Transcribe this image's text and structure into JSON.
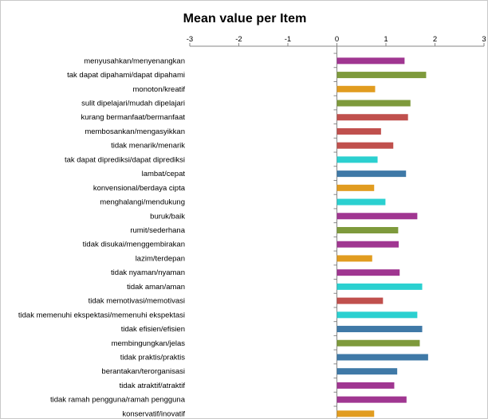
{
  "chart_data": {
    "type": "bar",
    "orientation": "horizontal",
    "title": "Mean value per Item",
    "xlim": [
      -3,
      3
    ],
    "x_ticks": [
      "-3",
      "-2",
      "-1",
      "0",
      "1",
      "2",
      "3"
    ],
    "grid": false,
    "legend": "none",
    "categories": [
      "menyusahkan/menyenangkan",
      "tak dapat dipahami/dapat dipahami",
      "monoton/kreatif",
      "sulit dipelajari/mudah dipelajari",
      "kurang bermanfaat/bermanfaat",
      "membosankan/mengasyikkan",
      "tidak menarik/menarik",
      "tak dapat diprediksi/dapat diprediksi",
      "lambat/cepat",
      "konvensional/berdaya cipta",
      "menghalangi/mendukung",
      "buruk/baik",
      "rumit/sederhana",
      "tidak disukai/menggembirakan",
      "lazim/terdepan",
      "tidak nyaman/nyaman",
      "tidak aman/aman",
      "tidak memotivasi/memotivasi",
      "tidak memenuhi ekspektasi/memenuhi ekspektasi",
      "tidak efisien/efisien",
      "membingungkan/jelas",
      "tidak praktis/praktis",
      "berantakan/terorganisasi",
      "tidak atraktif/atraktif",
      "tidak ramah pengguna/ramah pengguna",
      "konservatif/inovatif"
    ],
    "values": [
      1.38,
      1.82,
      0.78,
      1.5,
      1.45,
      0.9,
      1.15,
      0.83,
      1.41,
      0.76,
      0.99,
      1.64,
      1.25,
      1.26,
      0.72,
      1.28,
      1.74,
      0.94,
      1.64,
      1.74,
      1.69,
      1.86,
      1.23,
      1.17,
      1.42,
      0.76
    ],
    "bar_colors": [
      "#a03691",
      "#7e9a3c",
      "#e19c20",
      "#7e9a3c",
      "#c0504d",
      "#c0504d",
      "#c0504d",
      "#2bd0d0",
      "#3f79a7",
      "#e19c20",
      "#2bd0d0",
      "#a03691",
      "#7e9a3c",
      "#a03691",
      "#e19c20",
      "#a03691",
      "#2bd0d0",
      "#c0504d",
      "#2bd0d0",
      "#3f79a7",
      "#7e9a3c",
      "#3f79a7",
      "#3f79a7",
      "#a03691",
      "#a03691",
      "#e19c20"
    ]
  }
}
